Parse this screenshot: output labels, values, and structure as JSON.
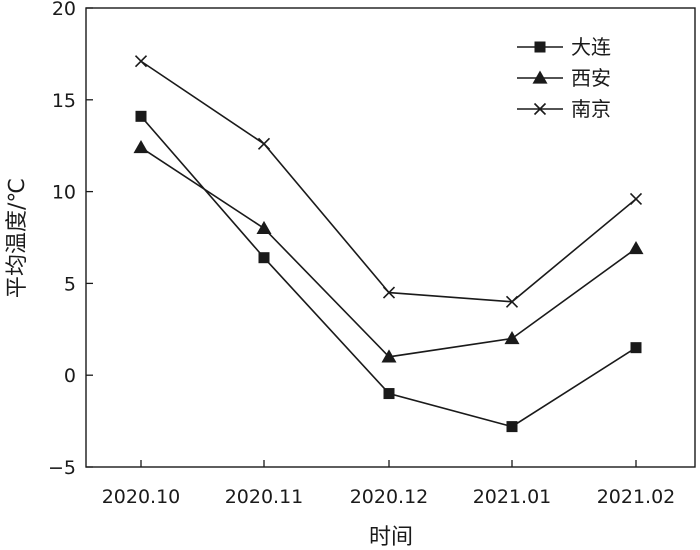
{
  "chart_data": {
    "type": "line",
    "title": "",
    "xlabel": "时间",
    "ylabel": "平均温度/℃",
    "categories": [
      "2020.10",
      "2020.11",
      "2020.12",
      "2021.01",
      "2021.02"
    ],
    "ylim": [
      -5,
      20
    ],
    "yticks": [
      -5,
      0,
      5,
      10,
      15,
      20
    ],
    "yticks_labels": [
      "−5",
      "0",
      "5",
      "10",
      "15",
      "20"
    ],
    "grid": false,
    "legend_position": "top-right",
    "series": [
      {
        "name": "大连",
        "marker": "square",
        "values": [
          14.1,
          6.4,
          -1.0,
          -2.8,
          1.5
        ]
      },
      {
        "name": "西安",
        "marker": "triangle",
        "values": [
          12.4,
          8.0,
          1.0,
          2.0,
          6.9
        ]
      },
      {
        "name": "南京",
        "marker": "cross",
        "values": [
          17.1,
          12.6,
          4.5,
          4.0,
          9.6
        ]
      }
    ],
    "colors": {
      "line": "#1a1a1a",
      "background": "#ffffff"
    }
  }
}
